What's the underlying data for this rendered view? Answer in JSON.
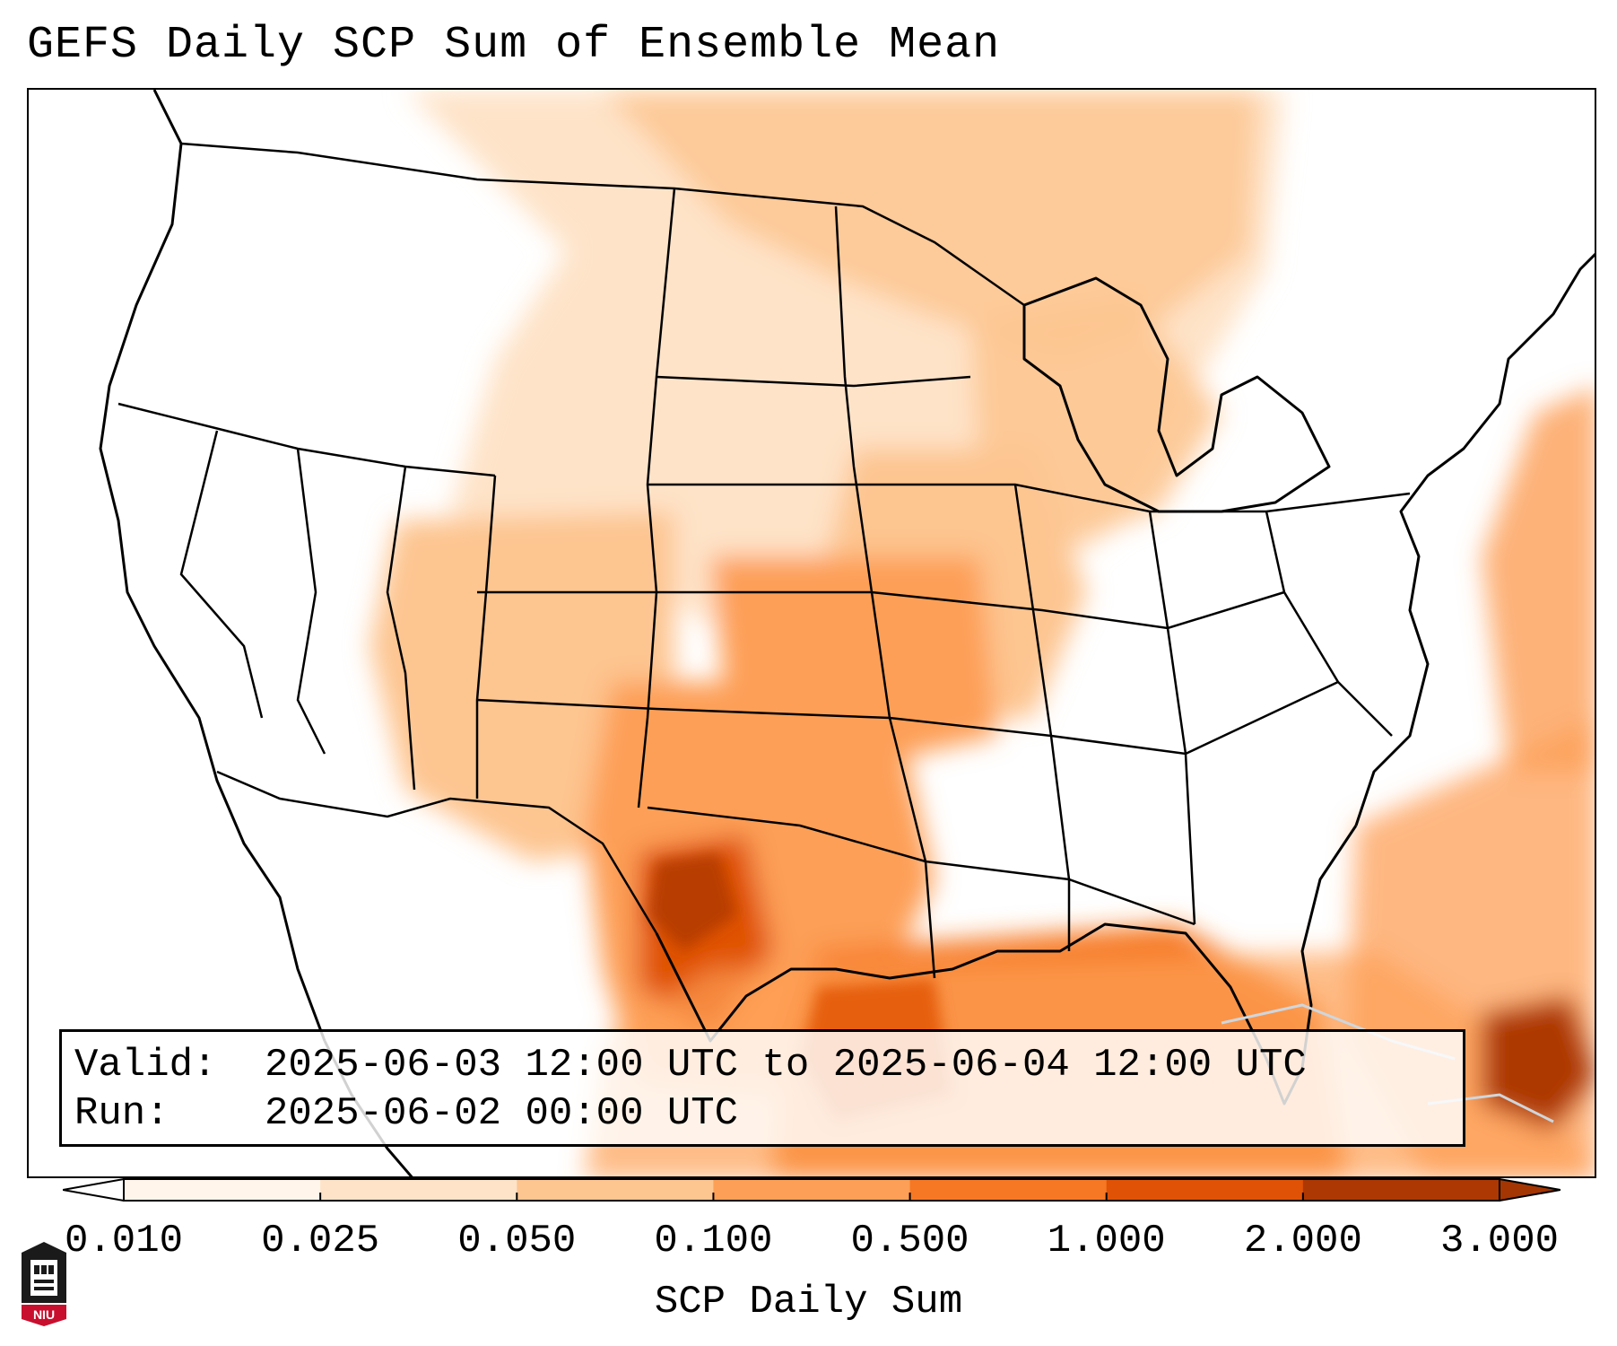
{
  "title": "GEFS Daily SCP Sum of Ensemble Mean",
  "info": {
    "valid_label": "Valid:",
    "valid_value": "2025-06-03 12:00 UTC to 2025-06-04 12:00 UTC",
    "run_label": "Run:",
    "run_value": "2025-06-02 00:00 UTC"
  },
  "colorbar": {
    "label": "SCP Daily Sum",
    "ticks": [
      "0.010",
      "0.025",
      "0.050",
      "0.100",
      "0.500",
      "1.000",
      "2.000",
      "3.000"
    ],
    "colors": [
      "#fff5eb",
      "#fee3c8",
      "#fdc590",
      "#fd9f56",
      "#f67824",
      "#e05206",
      "#ad3803"
    ],
    "extend": "both"
  },
  "logo": {
    "text": "NIU",
    "color": "#c8102e"
  }
}
